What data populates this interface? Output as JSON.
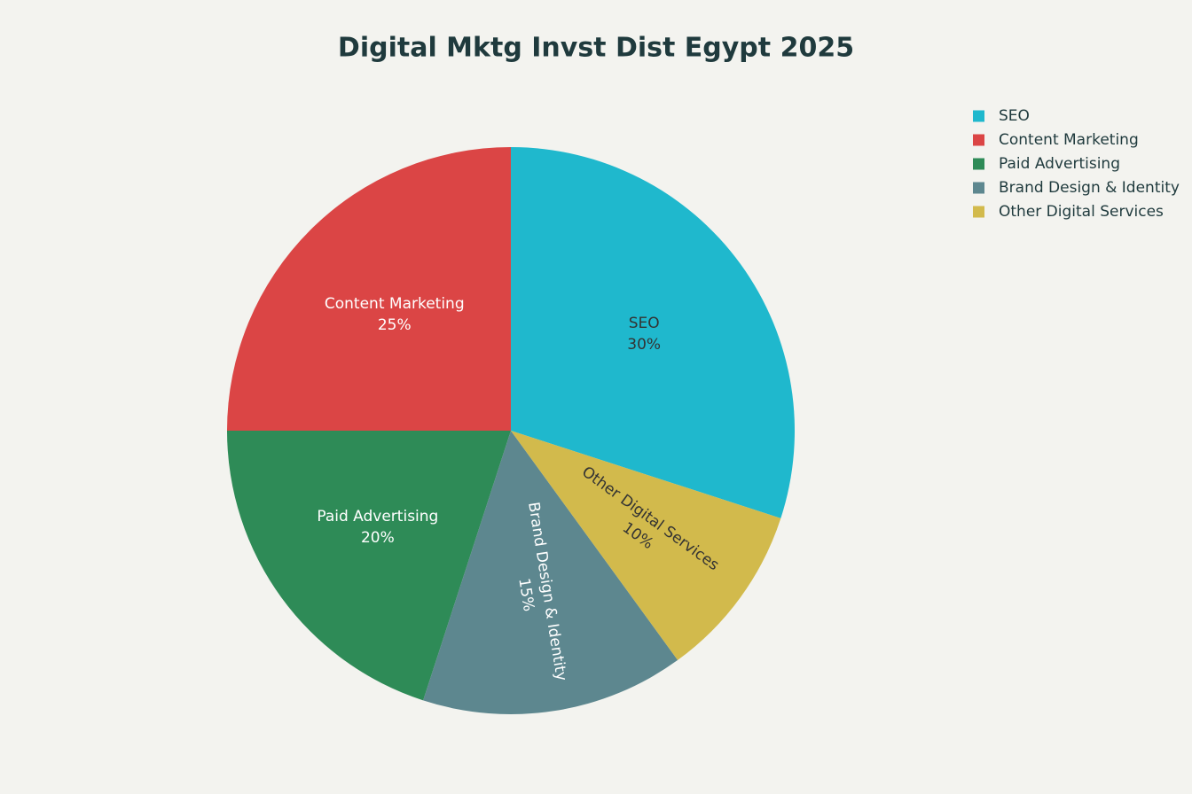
{
  "chart_data": {
    "type": "pie",
    "title": "Digital Mktg Invst Dist Egypt 2025",
    "categories": [
      "SEO",
      "Content Marketing",
      "Paid Advertising",
      "Brand Design & Identity",
      "Other Digital Services"
    ],
    "values": [
      30,
      25,
      20,
      15,
      10
    ],
    "value_labels": [
      "30%",
      "25%",
      "20%",
      "15%",
      "10%"
    ],
    "colors": [
      "#1fb8cd",
      "#db4545",
      "#2e8b57",
      "#5d878f",
      "#d2ba4c"
    ],
    "legend": "top-right"
  }
}
